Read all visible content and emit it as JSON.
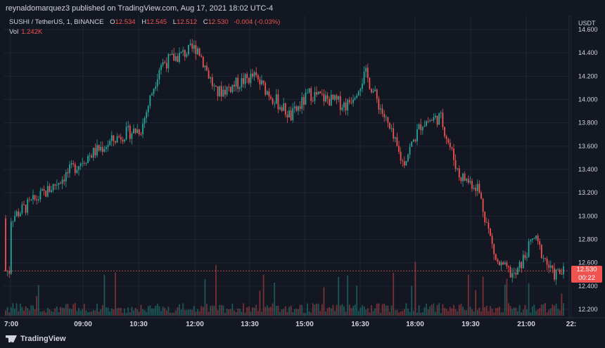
{
  "header": {
    "published": "reynaldomarquez3 published on TradingView.com, Aug 17, 2021 18:02 UTC-4"
  },
  "legend": {
    "symbol": "SUSHI / TetherUS, 1, BINANCE",
    "o_label": "O",
    "o_value": "12.534",
    "h_label": "H",
    "h_value": "12.545",
    "l_label": "L",
    "l_value": "12.512",
    "c_label": "C",
    "c_value": "12.530",
    "change": "-0.004 (-0.03%)",
    "vol_label": "Vol",
    "vol_value": "1.242K"
  },
  "axis": {
    "currency": "USDT"
  },
  "price_tag": {
    "price": "12.530",
    "countdown": "00:22"
  },
  "footer": {
    "brand": "TradingView"
  },
  "colors": {
    "up": "#26a69a",
    "down": "#ef5350",
    "bg": "#131722",
    "grid": "#1f2433",
    "text": "#d1d4dc"
  },
  "chart_data": {
    "type": "candlestick",
    "title": "SUSHI / TetherUS, 1, BINANCE",
    "ylim": [
      12.1,
      14.7
    ],
    "y_ticks": [
      "14.600",
      "14.400",
      "14.200",
      "14.000",
      "13.800",
      "13.600",
      "13.400",
      "13.200",
      "13.000",
      "12.800",
      "12.600",
      "12.400",
      "12.200"
    ],
    "x_ticks": [
      "7:00",
      "09:00",
      "10:30",
      "12:00",
      "13:30",
      "15:00",
      "16:30",
      "18:00",
      "19:30",
      "21:00",
      "22:"
    ],
    "last_price": 12.53,
    "price_path_x": [
      "7:00",
      "8:00",
      "09:00",
      "10:00",
      "10:30",
      "11:00",
      "12:00",
      "12:30",
      "13:30",
      "14:30",
      "15:00",
      "16:00",
      "16:30",
      "17:00",
      "17:30",
      "18:00",
      "18:30",
      "19:00",
      "19:30",
      "20:00",
      "20:30",
      "21:00",
      "21:30",
      "22:00"
    ],
    "price_path_y": [
      12.98,
      13.22,
      13.5,
      13.7,
      13.75,
      14.3,
      14.45,
      14.05,
      14.2,
      13.85,
      14.05,
      13.95,
      14.22,
      13.85,
      13.45,
      13.8,
      13.85,
      13.35,
      13.25,
      12.6,
      12.48,
      12.82,
      12.5,
      12.53
    ]
  }
}
